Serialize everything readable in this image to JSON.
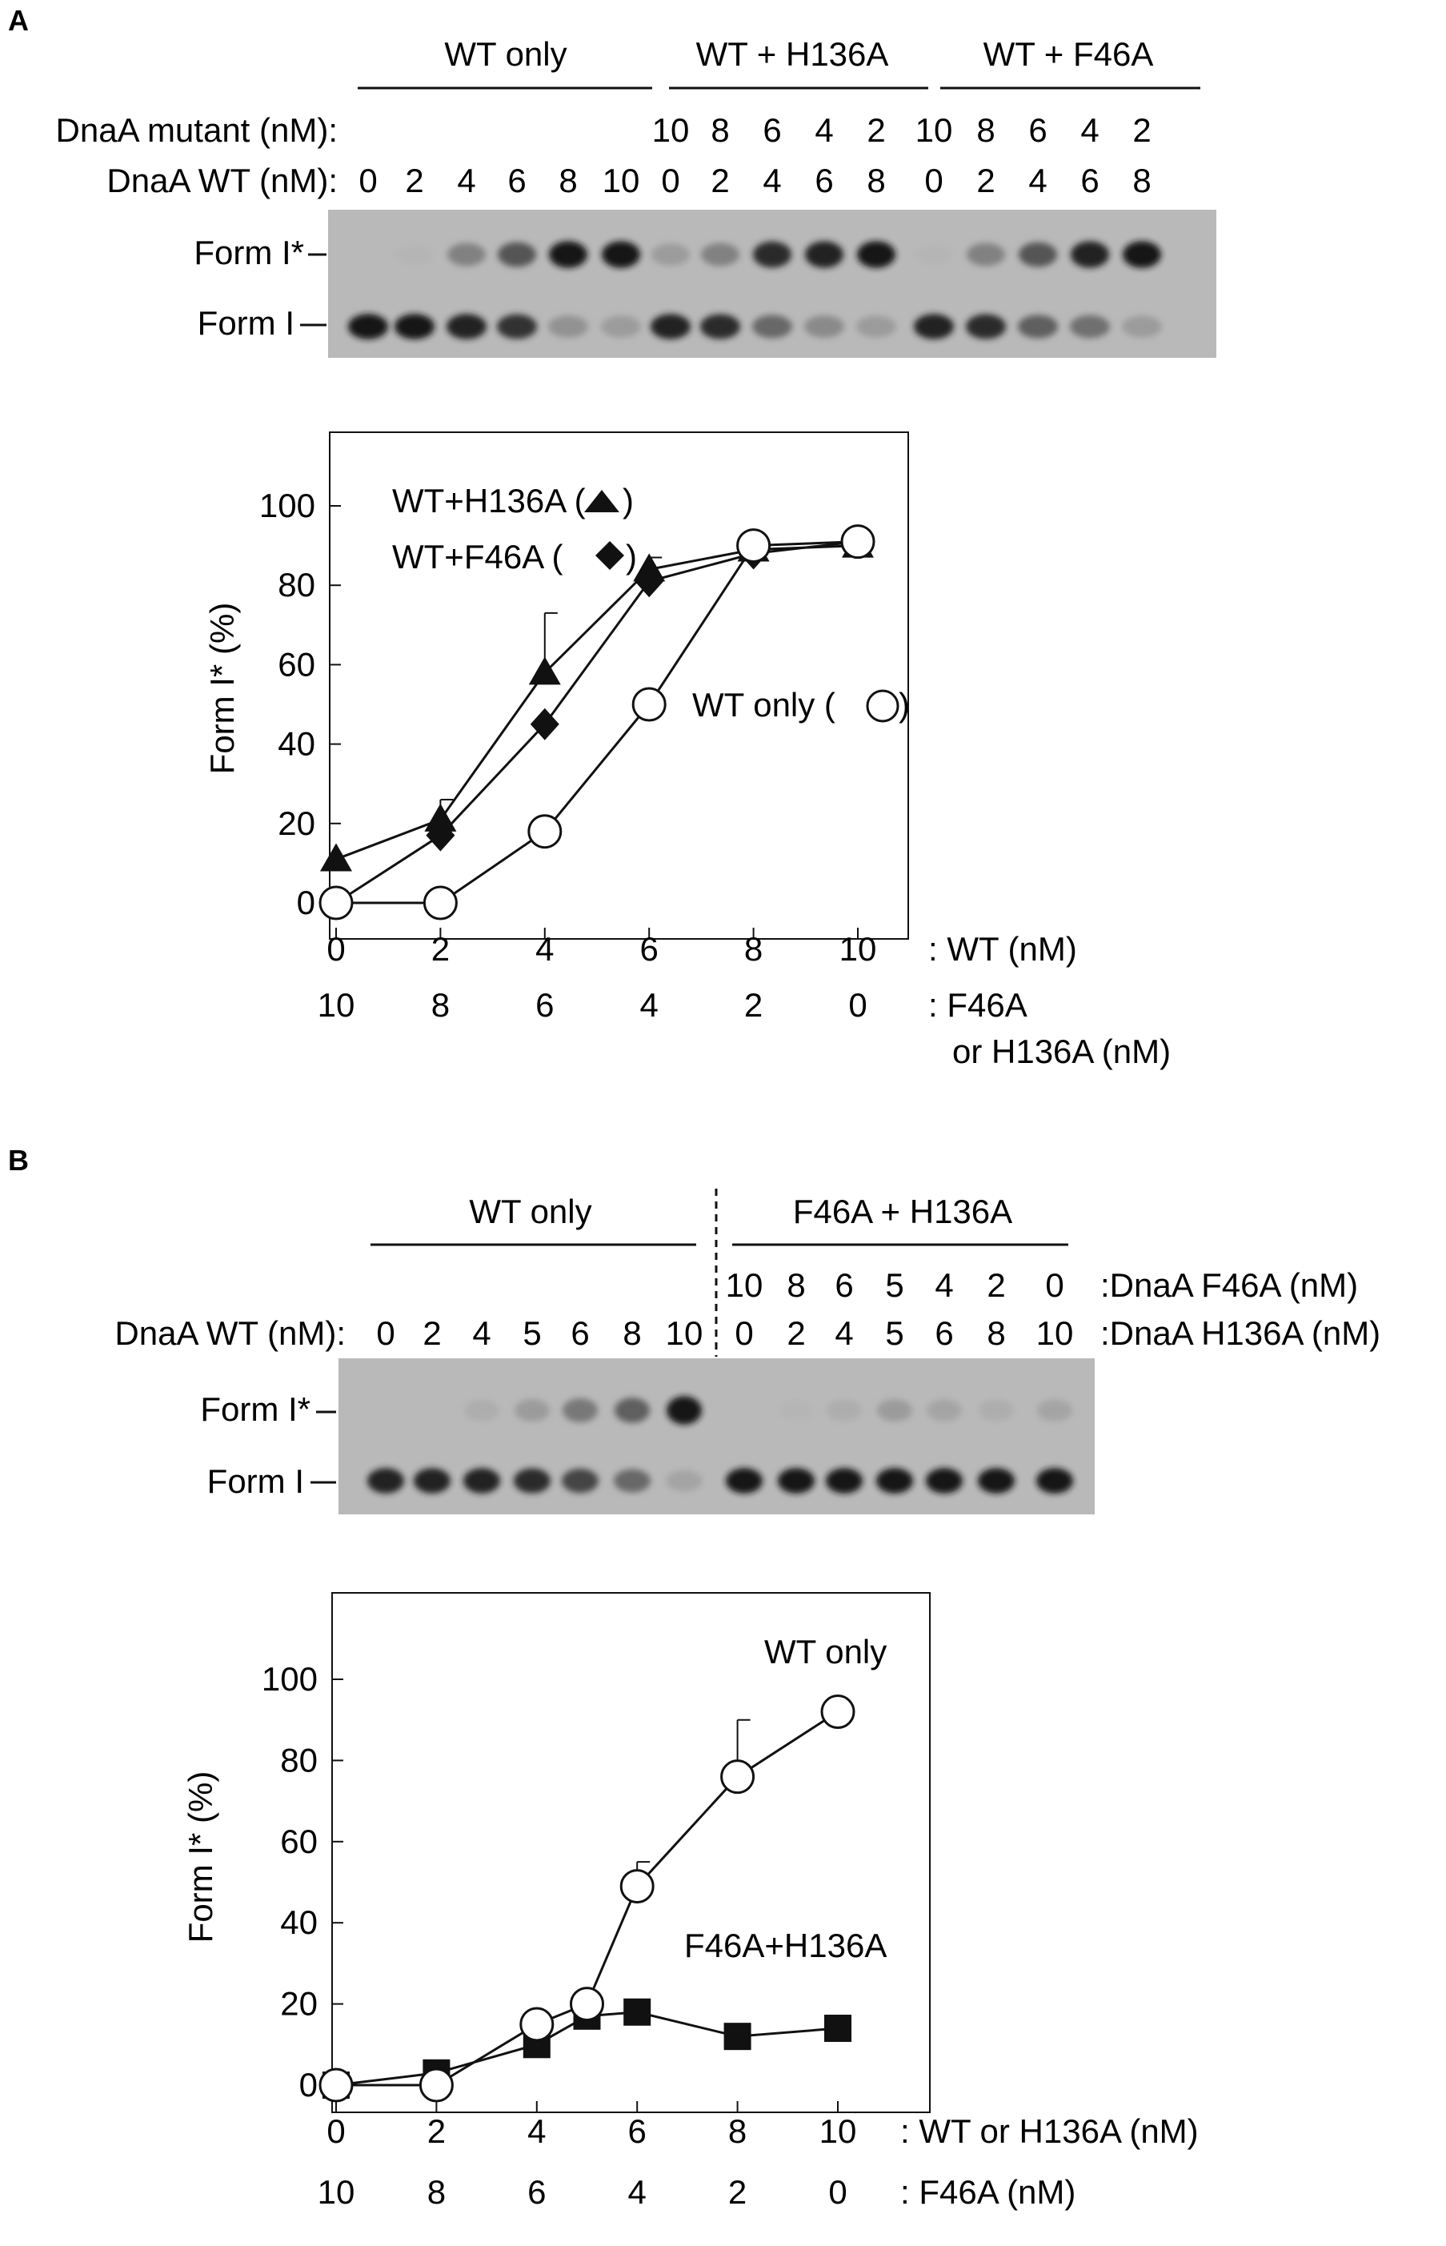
{
  "panel_a": {
    "letter": "A",
    "gel": {
      "groups": [
        "WT only",
        "WT + H136A",
        "WT + F46A"
      ],
      "row_mutant_label": "DnaA mutant (nM):",
      "row_wt_label": "DnaA WT (nM):",
      "mutant_values": [
        "10",
        "8",
        "6",
        "4",
        "2",
        "10",
        "8",
        "6",
        "4",
        "2"
      ],
      "wt_values": [
        "0",
        "2",
        "4",
        "6",
        "8",
        "10",
        "0",
        "2",
        "4",
        "6",
        "8",
        "0",
        "2",
        "4",
        "6",
        "8"
      ],
      "band_top": "Form I*",
      "band_bottom": "Form I",
      "lanes_formIstar_intensity": [
        0.0,
        0.05,
        0.35,
        0.6,
        0.95,
        0.95,
        0.2,
        0.35,
        0.85,
        0.9,
        0.95,
        0.05,
        0.35,
        0.6,
        0.9,
        0.95
      ],
      "lanes_formI_intensity": [
        0.95,
        0.95,
        0.9,
        0.8,
        0.25,
        0.2,
        0.9,
        0.85,
        0.5,
        0.3,
        0.2,
        0.9,
        0.85,
        0.55,
        0.45,
        0.2
      ]
    }
  },
  "panel_b": {
    "letter": "B",
    "gel": {
      "groups": [
        "WT only",
        "F46A + H136A"
      ],
      "row_wt_label": "DnaA WT (nM):",
      "wt_values": [
        "0",
        "2",
        "4",
        "5",
        "6",
        "8",
        "10"
      ],
      "f46a_values": [
        "10",
        "8",
        "6",
        "5",
        "4",
        "2",
        "0"
      ],
      "h136a_values": [
        "0",
        "2",
        "4",
        "5",
        "6",
        "8",
        "10"
      ],
      "f46a_label": ":DnaA F46A (nM)",
      "h136a_label": ":DnaA H136A (nM)",
      "band_top": "Form I*",
      "band_bottom": "Form I",
      "lanes_formIstar_intensity": [
        0.0,
        0.0,
        0.1,
        0.2,
        0.4,
        0.55,
        0.95,
        0.0,
        0.05,
        0.1,
        0.2,
        0.15,
        0.1,
        0.15
      ],
      "lanes_formI_intensity": [
        0.9,
        0.9,
        0.9,
        0.85,
        0.7,
        0.5,
        0.15,
        0.95,
        0.95,
        0.95,
        0.95,
        0.95,
        0.95,
        0.95
      ]
    }
  },
  "chart_data": [
    {
      "type": "line",
      "ylabel": "Form I* (%)",
      "ylim": [
        0,
        120
      ],
      "yticks": [
        0,
        20,
        40,
        60,
        80,
        100
      ],
      "xlim": [
        0,
        10
      ],
      "x_ticks_top": [
        "0",
        "2",
        "4",
        "6",
        "8",
        "10"
      ],
      "x_ticks_bottom": [
        "10",
        "8",
        "6",
        "4",
        "2",
        "0"
      ],
      "x_label_top": ": WT (nM)",
      "x_label_bottom_1": ": F46A",
      "x_label_bottom_2": "or H136A (nM)",
      "series": [
        {
          "name": "WT+H136A",
          "legend_text": "WT+H136A (",
          "legend_close": ")",
          "marker": "triangle",
          "x": [
            0,
            2,
            4,
            6,
            8,
            10
          ],
          "values": [
            11,
            21,
            58,
            84,
            89,
            90
          ],
          "err": [
            0,
            5,
            15,
            0,
            0,
            0
          ]
        },
        {
          "name": "WT+F46A",
          "legend_text": "WT+F46A (",
          "legend_close": ")",
          "marker": "diamond",
          "x": [
            0,
            2,
            4,
            6,
            8,
            10
          ],
          "values": [
            0,
            17,
            45,
            81,
            88,
            91
          ],
          "err": [
            0,
            0,
            0,
            6,
            0,
            0
          ]
        },
        {
          "name": "WT only",
          "legend_text": "WT only (",
          "legend_close": ")",
          "marker": "circle",
          "x": [
            0,
            2,
            4,
            6,
            8,
            10
          ],
          "values": [
            0,
            0,
            18,
            50,
            90,
            91
          ],
          "err": [
            0,
            0,
            0,
            0,
            0,
            0
          ]
        }
      ]
    },
    {
      "type": "line",
      "ylabel": "Form I* (%)",
      "ylim": [
        0,
        120
      ],
      "yticks": [
        0,
        20,
        40,
        60,
        80,
        100
      ],
      "xlim": [
        0,
        10
      ],
      "x_ticks_top": [
        "0",
        "2",
        "4",
        "6",
        "8",
        "10"
      ],
      "x_ticks_bottom": [
        "10",
        "8",
        "6",
        "4",
        "2",
        "0"
      ],
      "x_label_top": ": WT or H136A (nM)",
      "x_label_bottom_1": ": F46A (nM)",
      "series": [
        {
          "name": "WT only",
          "marker": "circle",
          "x": [
            0,
            2,
            4,
            5,
            6,
            8,
            10
          ],
          "values": [
            0,
            0,
            15,
            20,
            49,
            76,
            92
          ],
          "err": [
            0,
            0,
            0,
            0,
            6,
            14,
            0
          ]
        },
        {
          "name": "F46A+H136A",
          "marker": "square",
          "x": [
            0,
            2,
            4,
            5,
            6,
            8,
            10
          ],
          "values": [
            0,
            3,
            10,
            17,
            18,
            12,
            14
          ],
          "err": [
            0,
            0,
            0,
            0,
            0,
            0,
            0
          ]
        }
      ]
    }
  ]
}
